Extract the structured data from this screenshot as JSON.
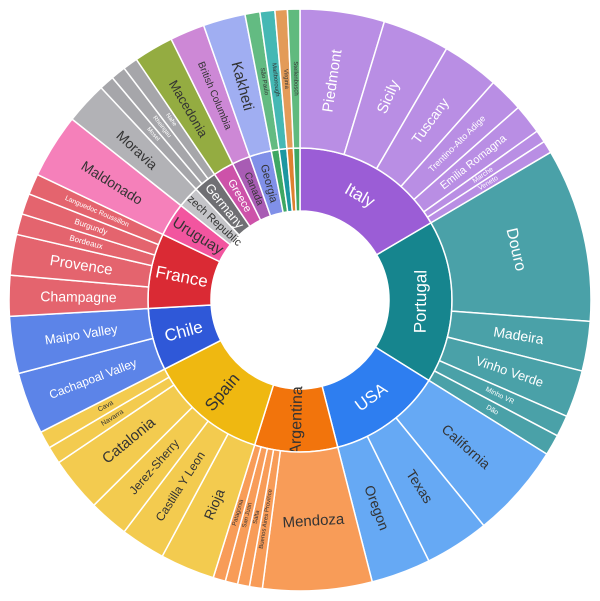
{
  "chart_data": {
    "type": "sunburst",
    "title": "",
    "description": "Two-ring sunburst of wine countries (inner ring) and their wine regions (outer ring)",
    "background": "#ffffff",
    "layout": {
      "center": [
        300,
        300
      ],
      "hole_radius": 89,
      "ring1_radius": 152,
      "ring2_radius": 291,
      "start_angle_deg": 0,
      "direction": "clockwise",
      "stroke_color": "#ffffff",
      "stroke_width": 1.5
    },
    "nodes": [
      {
        "label": "Italy",
        "color": "#9b5dd6",
        "text_color": "#ffffff",
        "orient": "tangential",
        "font_size": 17,
        "children": [
          {
            "label": "Piedmont",
            "value": 17.0,
            "color": "#b98ee4",
            "text_color": "#ffffff",
            "orient": "radial",
            "font_size": 15
          },
          {
            "label": "Sicily",
            "value": 13.5,
            "color": "#b98ee4",
            "text_color": "#ffffff",
            "orient": "radial",
            "font_size": 15
          },
          {
            "label": "Tuscany",
            "value": 11.5,
            "color": "#b98ee4",
            "text_color": "#ffffff",
            "orient": "radial",
            "font_size": 14
          },
          {
            "label": "Trentino-Alto Adige",
            "value": 7.0,
            "color": "#b98ee4",
            "text_color": "#ffffff",
            "orient": "radial",
            "font_size": 9
          },
          {
            "label": "Emilia Romagna",
            "value": 6.0,
            "color": "#b98ee4",
            "text_color": "#ffffff",
            "orient": "radial",
            "font_size": 11
          },
          {
            "label": "Marche",
            "value": 2.5,
            "color": "#b98ee4",
            "text_color": "#ffffff",
            "orient": "radial",
            "font_size": 7
          },
          {
            "label": "Veneto",
            "value": 2.5,
            "color": "#b98ee4",
            "text_color": "#ffffff",
            "orient": "radial",
            "font_size": 7
          }
        ]
      },
      {
        "label": "Portugal",
        "color": "#16858e",
        "text_color": "#ffffff",
        "orient": "tangential",
        "font_size": 17,
        "children": [
          {
            "label": "Douro",
            "value": 35.0,
            "color": "#4aa1a8",
            "text_color": "#ffffff",
            "orient": "tangential",
            "font_size": 16
          },
          {
            "label": "Madeira",
            "value": 10.0,
            "color": "#4aa1a8",
            "text_color": "#ffffff",
            "orient": "radial",
            "font_size": 14
          },
          {
            "label": "Vinho Verde",
            "value": 9.5,
            "color": "#4aa1a8",
            "text_color": "#ffffff",
            "orient": "radial",
            "font_size": 13
          },
          {
            "label": "Minho VR",
            "value": 4.3,
            "color": "#4aa1a8",
            "text_color": "#ffffff",
            "orient": "radial",
            "font_size": 7
          },
          {
            "label": "Dão",
            "value": 4.2,
            "color": "#4aa1a8",
            "text_color": "#ffffff",
            "orient": "radial",
            "font_size": 7
          }
        ]
      },
      {
        "label": "USA",
        "color": "#2e7ef0",
        "text_color": "#ffffff",
        "orient": "tangential",
        "font_size": 17,
        "children": [
          {
            "label": "California",
            "value": 19.0,
            "color": "#66a9f4",
            "text_color": "#333333",
            "orient": "radial",
            "font_size": 14
          },
          {
            "label": "Texas",
            "value": 13.0,
            "color": "#66a9f4",
            "text_color": "#333333",
            "orient": "radial",
            "font_size": 14
          },
          {
            "label": "Oregon",
            "value": 12.0,
            "color": "#66a9f4",
            "text_color": "#333333",
            "orient": "radial",
            "font_size": 14
          }
        ]
      },
      {
        "label": "Argentina",
        "color": "#f2740c",
        "text_color": "#333333",
        "orient": "radial",
        "font_size": 16,
        "children": [
          {
            "label": "Mendoza",
            "value": 22.0,
            "color": "#f89c58",
            "text_color": "#333333",
            "orient": "tangential",
            "font_size": 15
          },
          {
            "label": "Buenos Aires Province",
            "value": 2.6,
            "color": "#f89c58",
            "text_color": "#333333",
            "orient": "radial",
            "font_size": 6
          },
          {
            "label": "Salta",
            "value": 2.4,
            "color": "#f89c58",
            "text_color": "#333333",
            "orient": "radial",
            "font_size": 6
          },
          {
            "label": "San Juan",
            "value": 2.5,
            "color": "#f89c58",
            "text_color": "#333333",
            "orient": "radial",
            "font_size": 6
          },
          {
            "label": "Patagonia",
            "value": 2.5,
            "color": "#f89c58",
            "text_color": "#333333",
            "orient": "radial",
            "font_size": 6
          }
        ]
      },
      {
        "label": "Spain",
        "color": "#efb811",
        "text_color": "#333333",
        "orient": "radial",
        "font_size": 17,
        "children": [
          {
            "label": "Rioja",
            "value": 11.0,
            "color": "#f3cb4f",
            "text_color": "#333333",
            "orient": "radial",
            "font_size": 14
          },
          {
            "label": "Castilla Y Leon",
            "value": 9.0,
            "color": "#f3cb4f",
            "text_color": "#333333",
            "orient": "radial",
            "font_size": 12
          },
          {
            "label": "Jerez-Sherry",
            "value": 8.0,
            "color": "#f3cb4f",
            "text_color": "#333333",
            "orient": "radial",
            "font_size": 12
          },
          {
            "label": "Catalonia",
            "value": 11.0,
            "color": "#f3cb4f",
            "text_color": "#333333",
            "orient": "radial",
            "font_size": 15
          },
          {
            "label": "Navarra",
            "value": 3.5,
            "color": "#f3cb4f",
            "text_color": "#333333",
            "orient": "radial",
            "font_size": 7
          },
          {
            "label": "Cava",
            "value": 3.5,
            "color": "#f3cb4f",
            "text_color": "#333333",
            "orient": "radial",
            "font_size": 7
          }
        ]
      },
      {
        "label": "Chile",
        "color": "#2f58d8",
        "text_color": "#ffffff",
        "orient": "radial",
        "font_size": 17,
        "children": [
          {
            "label": "Cachapoal Valley",
            "value": 12.5,
            "color": "#5c84e8",
            "text_color": "#ffffff",
            "orient": "radial",
            "font_size": 12
          },
          {
            "label": "Maipo Valley",
            "value": 11.5,
            "color": "#5c84e8",
            "text_color": "#ffffff",
            "orient": "radial",
            "font_size": 13
          }
        ]
      },
      {
        "label": "France",
        "color": "#da2a34",
        "text_color": "#ffffff",
        "orient": "radial",
        "font_size": 17,
        "children": [
          {
            "label": "Champagne",
            "value": 8.2,
            "color": "#e4646e",
            "text_color": "#ffffff",
            "orient": "radial",
            "font_size": 14
          },
          {
            "label": "Provence",
            "value": 8.2,
            "color": "#e4646e",
            "text_color": "#ffffff",
            "orient": "radial",
            "font_size": 15
          },
          {
            "label": "Bordeaux",
            "value": 4.2,
            "color": "#e4646e",
            "text_color": "#ffffff",
            "orient": "radial",
            "font_size": 8
          },
          {
            "label": "Burgundy",
            "value": 4.2,
            "color": "#e4646e",
            "text_color": "#ffffff",
            "orient": "radial",
            "font_size": 8
          },
          {
            "label": "Languedoc Roussillon",
            "value": 4.2,
            "color": "#e4646e",
            "text_color": "#ffffff",
            "orient": "radial",
            "font_size": 7
          }
        ]
      },
      {
        "label": "Uruguay",
        "color": "#f2559f",
        "text_color": "#333333",
        "orient": "radial",
        "font_size": 15,
        "children": [
          {
            "label": "Maldonado",
            "value": 13.0,
            "color": "#f580ba",
            "text_color": "#333333",
            "orient": "radial",
            "font_size": 14
          }
        ]
      },
      {
        "label": "Czech Republic",
        "color": "#c4c4c8",
        "text_color": "#333333",
        "orient": "radial",
        "font_size": 11,
        "children": [
          {
            "label": "Moravia",
            "value": 8.5,
            "color": "#b2b2b6",
            "text_color": "#333333",
            "orient": "radial",
            "font_size": 14
          }
        ]
      },
      {
        "label": "Germany",
        "color": "#707074",
        "text_color": "#ffffff",
        "orient": "radial",
        "font_size": 13,
        "children": [
          {
            "label": "Mosel",
            "value": 3.0,
            "color": "#a6a6aa",
            "text_color": "#ffffff",
            "orient": "radial",
            "font_size": 6
          },
          {
            "label": "Rheingau",
            "value": 3.0,
            "color": "#a6a6aa",
            "text_color": "#ffffff",
            "orient": "radial",
            "font_size": 6
          },
          {
            "label": "Nahe",
            "value": 3.0,
            "color": "#a6a6aa",
            "text_color": "#ffffff",
            "orient": "radial",
            "font_size": 6
          }
        ]
      },
      {
        "label": "Greece",
        "color": "#cd52a9",
        "text_color": "#ffffff",
        "orient": "radial",
        "font_size": 11,
        "children": [
          {
            "label": "Macedonia",
            "value": 8.0,
            "color": "#94ac41",
            "text_color": "#333333",
            "orient": "radial",
            "font_size": 13
          }
        ]
      },
      {
        "label": "Canada",
        "color": "#a85cb4",
        "text_color": "#333333",
        "orient": "radial",
        "font_size": 10,
        "children": [
          {
            "label": "British Columbia",
            "value": 7.0,
            "color": "#cd88d6",
            "text_color": "#333333",
            "orient": "radial",
            "font_size": 10
          }
        ]
      },
      {
        "label": "Georgia",
        "color": "#8090e8",
        "text_color": "#333333",
        "orient": "radial",
        "font_size": 11,
        "children": [
          {
            "label": "Kakheti",
            "value": 8.5,
            "color": "#a0aef2",
            "text_color": "#333333",
            "orient": "radial",
            "font_size": 15
          }
        ]
      },
      {
        "label": "",
        "color": "#3fa763",
        "text_color": "#333333",
        "orient": "radial",
        "font_size": 6,
        "children": [
          {
            "label": "São Paulo",
            "value": 3.0,
            "color": "#63bb82",
            "text_color": "#333333",
            "orient": "radial",
            "font_size": 6
          }
        ]
      },
      {
        "label": "",
        "color": "#1b97a1",
        "text_color": "#333333",
        "orient": "radial",
        "font_size": 6,
        "children": [
          {
            "label": "Marlborough",
            "value": 3.0,
            "color": "#45b8b4",
            "text_color": "#333333",
            "orient": "radial",
            "font_size": 6
          }
        ]
      },
      {
        "label": "",
        "color": "#de8130",
        "text_color": "#333333",
        "orient": "radial",
        "font_size": 6,
        "children": [
          {
            "label": "Virginia",
            "value": 2.5,
            "color": "#e39b58",
            "text_color": "#333333",
            "orient": "radial",
            "font_size": 6
          }
        ]
      },
      {
        "label": "",
        "color": "#3fa763",
        "text_color": "#333333",
        "orient": "radial",
        "font_size": 6,
        "children": [
          {
            "label": "Stellenbosch",
            "value": 2.5,
            "color": "#60ba7e",
            "text_color": "#333333",
            "orient": "radial",
            "font_size": 6
          }
        ]
      }
    ]
  }
}
